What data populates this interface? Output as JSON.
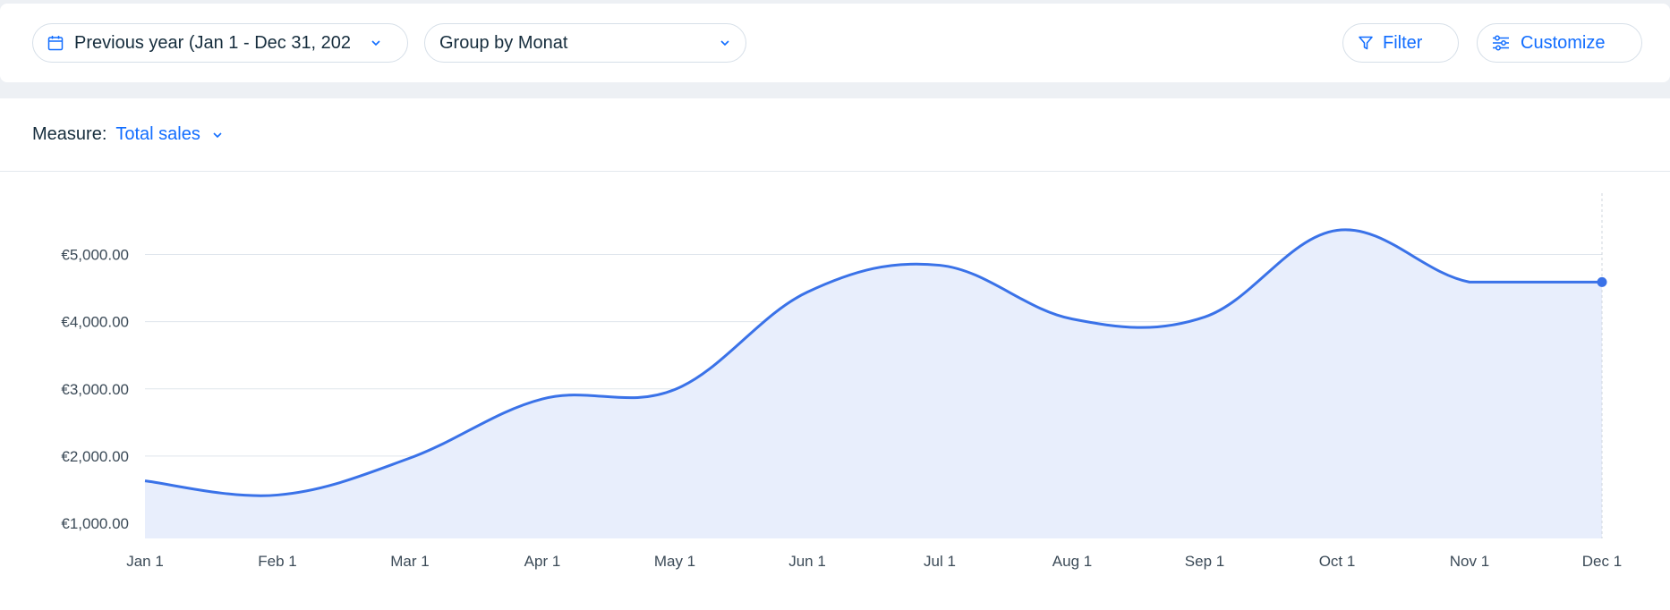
{
  "toolbar": {
    "date_range_label": "Previous year (Jan 1 - Dec 31, 202",
    "group_by_label": "Group by Monat",
    "filter_label": "Filter",
    "customize_label": "Customize"
  },
  "measure": {
    "label": "Measure:",
    "value": "Total sales"
  },
  "colors": {
    "accent": "#116dff",
    "line": "#3a72e8",
    "area": "#e8eefc",
    "grid": "#dfe5ec"
  },
  "chart_data": {
    "type": "area",
    "categories": [
      "Jan 1",
      "Feb 1",
      "Mar 1",
      "Apr 1",
      "May 1",
      "Jun 1",
      "Jul 1",
      "Aug 1",
      "Sep 1",
      "Oct 1",
      "Nov 1",
      "Dec 1"
    ],
    "values": [
      1630,
      1420,
      1970,
      2850,
      2990,
      4440,
      4840,
      4040,
      4070,
      5360,
      4590,
      4590
    ],
    "y_ticks": [
      "€1,000.00",
      "€2,000.00",
      "€3,000.00",
      "€4,000.00",
      "€5,000.00"
    ],
    "y_tick_values": [
      1000,
      2000,
      3000,
      4000,
      5000
    ],
    "ylim": [
      880,
      5460
    ],
    "grid": true,
    "highlight_last_point": true
  }
}
